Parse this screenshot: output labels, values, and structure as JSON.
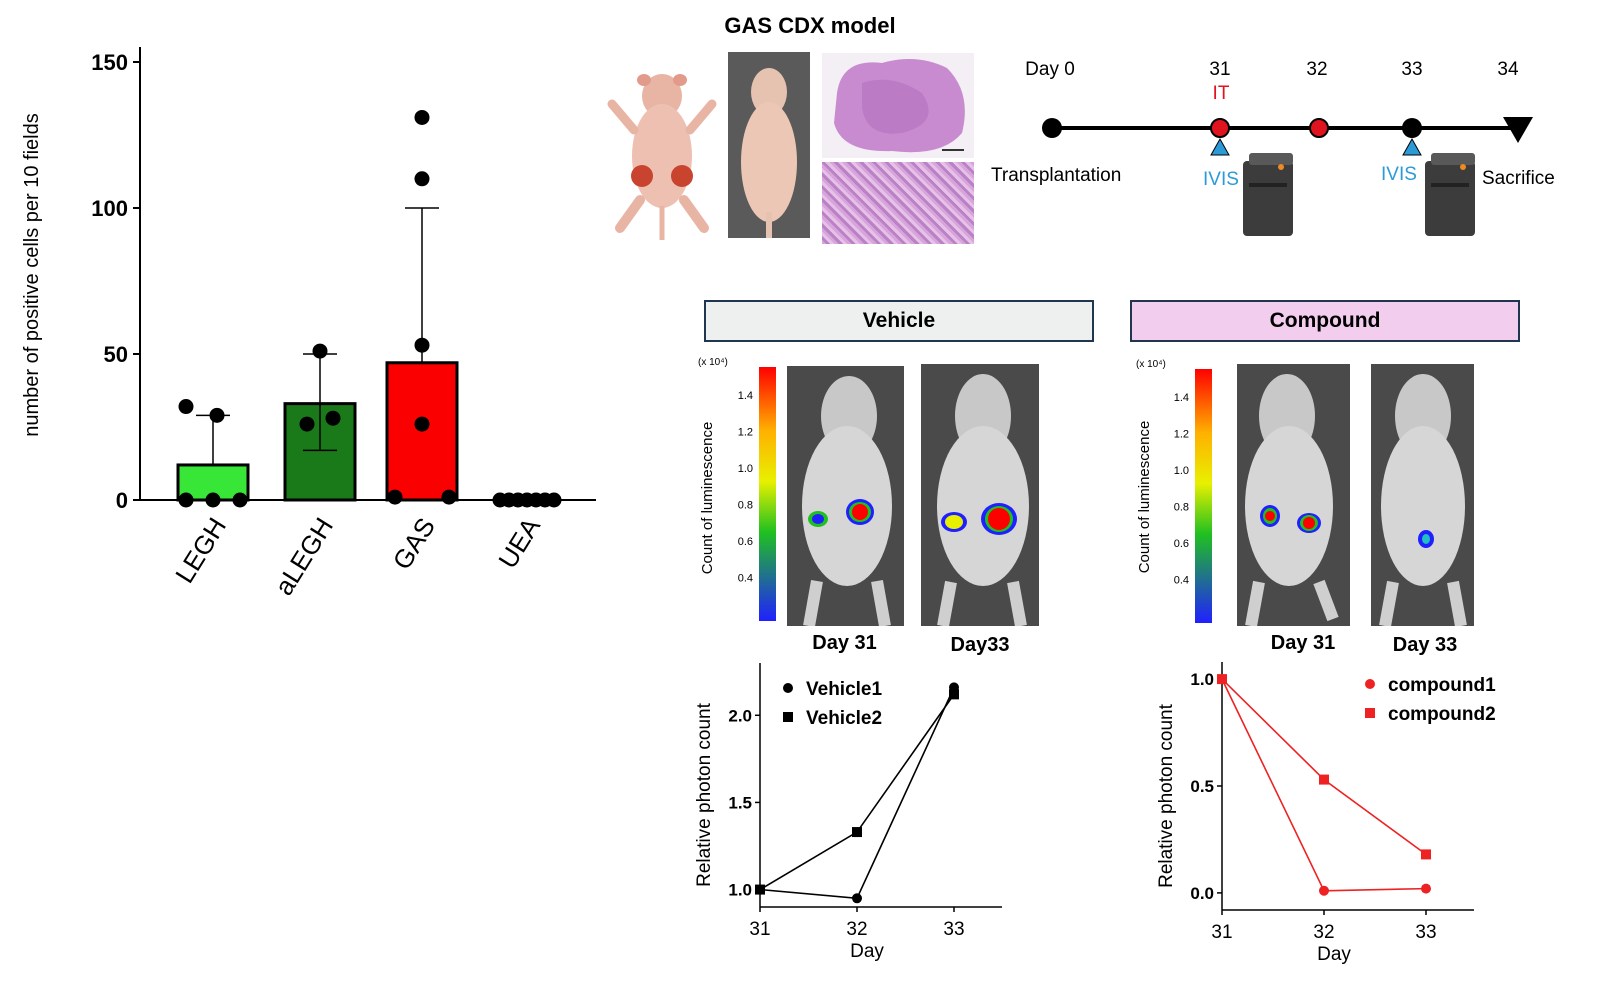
{
  "figure": {
    "cdx_title": "GAS CDX model"
  },
  "timeline": {
    "days": [
      "Day 0",
      "31",
      "32",
      "33",
      "34"
    ],
    "it_label": "IT",
    "ivis_label": "IVIS",
    "transplantation_label": "Transplantation",
    "sacrifice_label": "Sacrifice",
    "colors": {
      "treatment_dot": "#e0141e",
      "ivis_marker": "#2b9bd8",
      "it_text": "#e0141e",
      "ivis_text": "#2b9bd8"
    }
  },
  "groups": {
    "vehicle_label": "Vehicle",
    "compound_label": "Compound",
    "vehicle_box_color": "#eef0f0",
    "compound_box_color": "#f2cdee"
  },
  "imaging": {
    "scale_unit": "(x 10⁴)",
    "scale_ticks": [
      "1.4",
      "1.2",
      "1.0",
      "0.8",
      "0.6",
      "0.4"
    ],
    "scale_label": "Count of luminescence",
    "vehicle_days": [
      "Day 31",
      "Day33"
    ],
    "compound_days": [
      "Day 31",
      "Day 33"
    ]
  },
  "chart_data": [
    {
      "type": "bar",
      "categories": [
        "LEGH",
        "aLEGH",
        "GAS",
        "UEA"
      ],
      "values": [
        12,
        33,
        47,
        0
      ],
      "error_upper": [
        29,
        50,
        100,
        0
      ],
      "error_lower": [
        0,
        17,
        0,
        0
      ],
      "points": [
        [
          32,
          0,
          0,
          0,
          29
        ],
        [
          51,
          26,
          28
        ],
        [
          131,
          110,
          53,
          26,
          1,
          1
        ],
        [
          0,
          0,
          0,
          0,
          0,
          0,
          0
        ]
      ],
      "colors": [
        "#37e637",
        "#1a7a1a",
        "#fa0000",
        "#ffffff"
      ],
      "ylabel": "number of positive cells per 10 fields",
      "ylim": [
        0,
        150
      ],
      "yticks": [
        "0",
        "50",
        "100",
        "150"
      ]
    },
    {
      "type": "line",
      "x": [
        31,
        32,
        33
      ],
      "xticks": [
        "31",
        "32",
        "33"
      ],
      "xlabel": "Day",
      "ylabel": "Relative photon count",
      "ylim": [
        0.9,
        2.3
      ],
      "yticks": [
        "1.0",
        "1.5",
        "2.0"
      ],
      "series": [
        {
          "name": "Vehicle1",
          "values": [
            1.0,
            0.95,
            2.16
          ],
          "marker": "circle",
          "color": "#000000"
        },
        {
          "name": "Vehicle2",
          "values": [
            1.0,
            1.33,
            2.12
          ],
          "marker": "square",
          "color": "#000000"
        }
      ]
    },
    {
      "type": "line",
      "x": [
        31,
        32,
        33
      ],
      "xticks": [
        "31",
        "32",
        "33"
      ],
      "xlabel": "Day",
      "ylabel": "Relative photon count",
      "ylim": [
        -0.08,
        1.08
      ],
      "yticks": [
        "0.0",
        "0.5",
        "1.0"
      ],
      "series": [
        {
          "name": "compound1",
          "values": [
            1.0,
            0.01,
            0.02
          ],
          "marker": "circle",
          "color": "#ee2222"
        },
        {
          "name": "compound2",
          "values": [
            1.0,
            0.53,
            0.18
          ],
          "marker": "square",
          "color": "#ee2222"
        }
      ]
    }
  ]
}
